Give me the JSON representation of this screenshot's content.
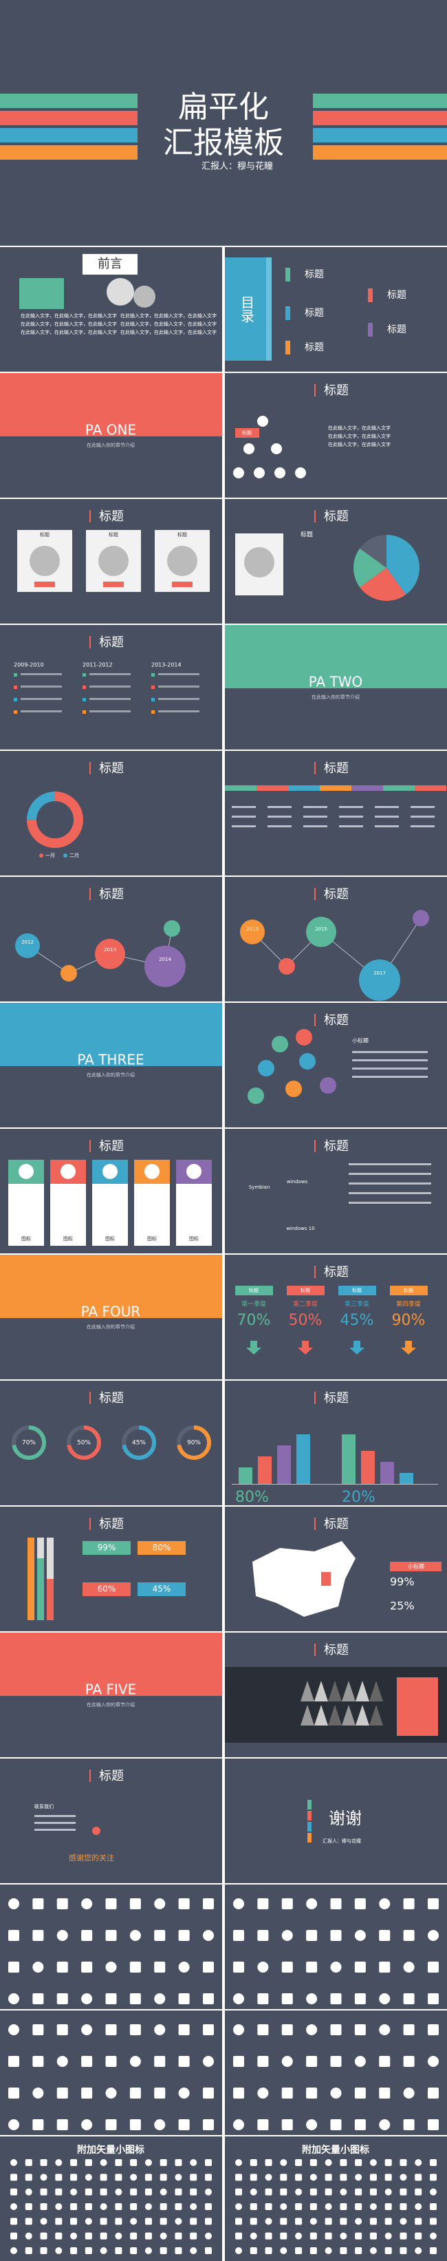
{
  "cover": {
    "title_line1": "扁平化",
    "title_line2": "汇报模板",
    "reporter": "汇报人：穆与花瞳"
  },
  "slides": [
    {
      "title": "前言",
      "body": [
        "在此输入文字，在此输入文字，在此输入文字",
        "在此输入文字，在此输入文字，在此输入文字",
        "在此输入文字，在此输入文字，在此输入文字"
      ]
    },
    {
      "title": "目录",
      "items": [
        "标题",
        "标题",
        "标题",
        "标题",
        "标题"
      ]
    },
    {
      "title": "PA ONE",
      "subtitle": "在此输入你的章节介绍"
    },
    {
      "title": "标题",
      "tag": "标题",
      "body": [
        "在此输入文字，在此输入文字",
        "在此输入文字，在此输入文字",
        "在此输入文字，在此输入文字"
      ]
    },
    {
      "title": "标题",
      "captions": [
        "标题",
        "标题",
        "标题"
      ]
    },
    {
      "title": "标题",
      "caption": "标题",
      "pie_values": [
        40,
        25,
        20,
        15
      ]
    },
    {
      "title": "标题",
      "years": [
        "2009-2010",
        "2011-2012",
        "2013-2014"
      ]
    },
    {
      "title": "PA TWO",
      "subtitle": "在此输入你的章节介绍"
    },
    {
      "title": "标题",
      "legend": [
        "一月",
        "二月"
      ],
      "donut_values": [
        75,
        25
      ]
    },
    {
      "title": "标题"
    },
    {
      "title": "标题",
      "years": [
        "2012",
        "2013",
        "2014"
      ]
    },
    {
      "title": "标题",
      "years": [
        "2013",
        "2015",
        "2017"
      ]
    },
    {
      "title": "PA THREE",
      "subtitle": "在此输入你的章节介绍"
    },
    {
      "title": "标题",
      "caption": "小标题"
    },
    {
      "title": "标题",
      "labels": [
        "图标",
        "图标",
        "图标",
        "图标",
        "图标"
      ]
    },
    {
      "title": "标题",
      "labels": [
        "windows",
        "Symbian",
        "windows 10"
      ]
    },
    {
      "title": "PA FOUR",
      "subtitle": "在此输入你的章节介绍"
    },
    {
      "title": "标题",
      "headers": [
        "标题",
        "标题",
        "标题",
        "标题"
      ],
      "subheads": [
        "第一季度",
        "第二季度",
        "第三季度",
        "第四季度"
      ],
      "values": [
        "70%",
        "50%",
        "45%",
        "90%"
      ]
    },
    {
      "title": "标题",
      "values": [
        "70%",
        "50%",
        "45%",
        "90%"
      ]
    },
    {
      "title": "标题",
      "bars": [
        [
          3,
          5,
          7,
          9
        ],
        [
          9,
          6,
          4,
          2
        ]
      ],
      "values": [
        "80%",
        "20%"
      ]
    },
    {
      "title": "标题",
      "values": [
        "99%",
        "80%",
        "60%",
        "45%"
      ]
    },
    {
      "title": "标题",
      "caption": "小标题",
      "values": [
        "99%",
        "25%"
      ]
    },
    {
      "title": "PA FIVE",
      "subtitle": "在此输入你的章节介绍"
    },
    {
      "title": "标题"
    },
    {
      "title": "标题",
      "texts": [
        "联系我们",
        "感谢您的关注"
      ]
    },
    {
      "title": "谢谢",
      "reporter": "汇报人：穆与花瞳"
    },
    {},
    {},
    {},
    {},
    {
      "title": "附加矢量小图标"
    },
    {
      "title": "附加矢量小图标"
    }
  ]
}
